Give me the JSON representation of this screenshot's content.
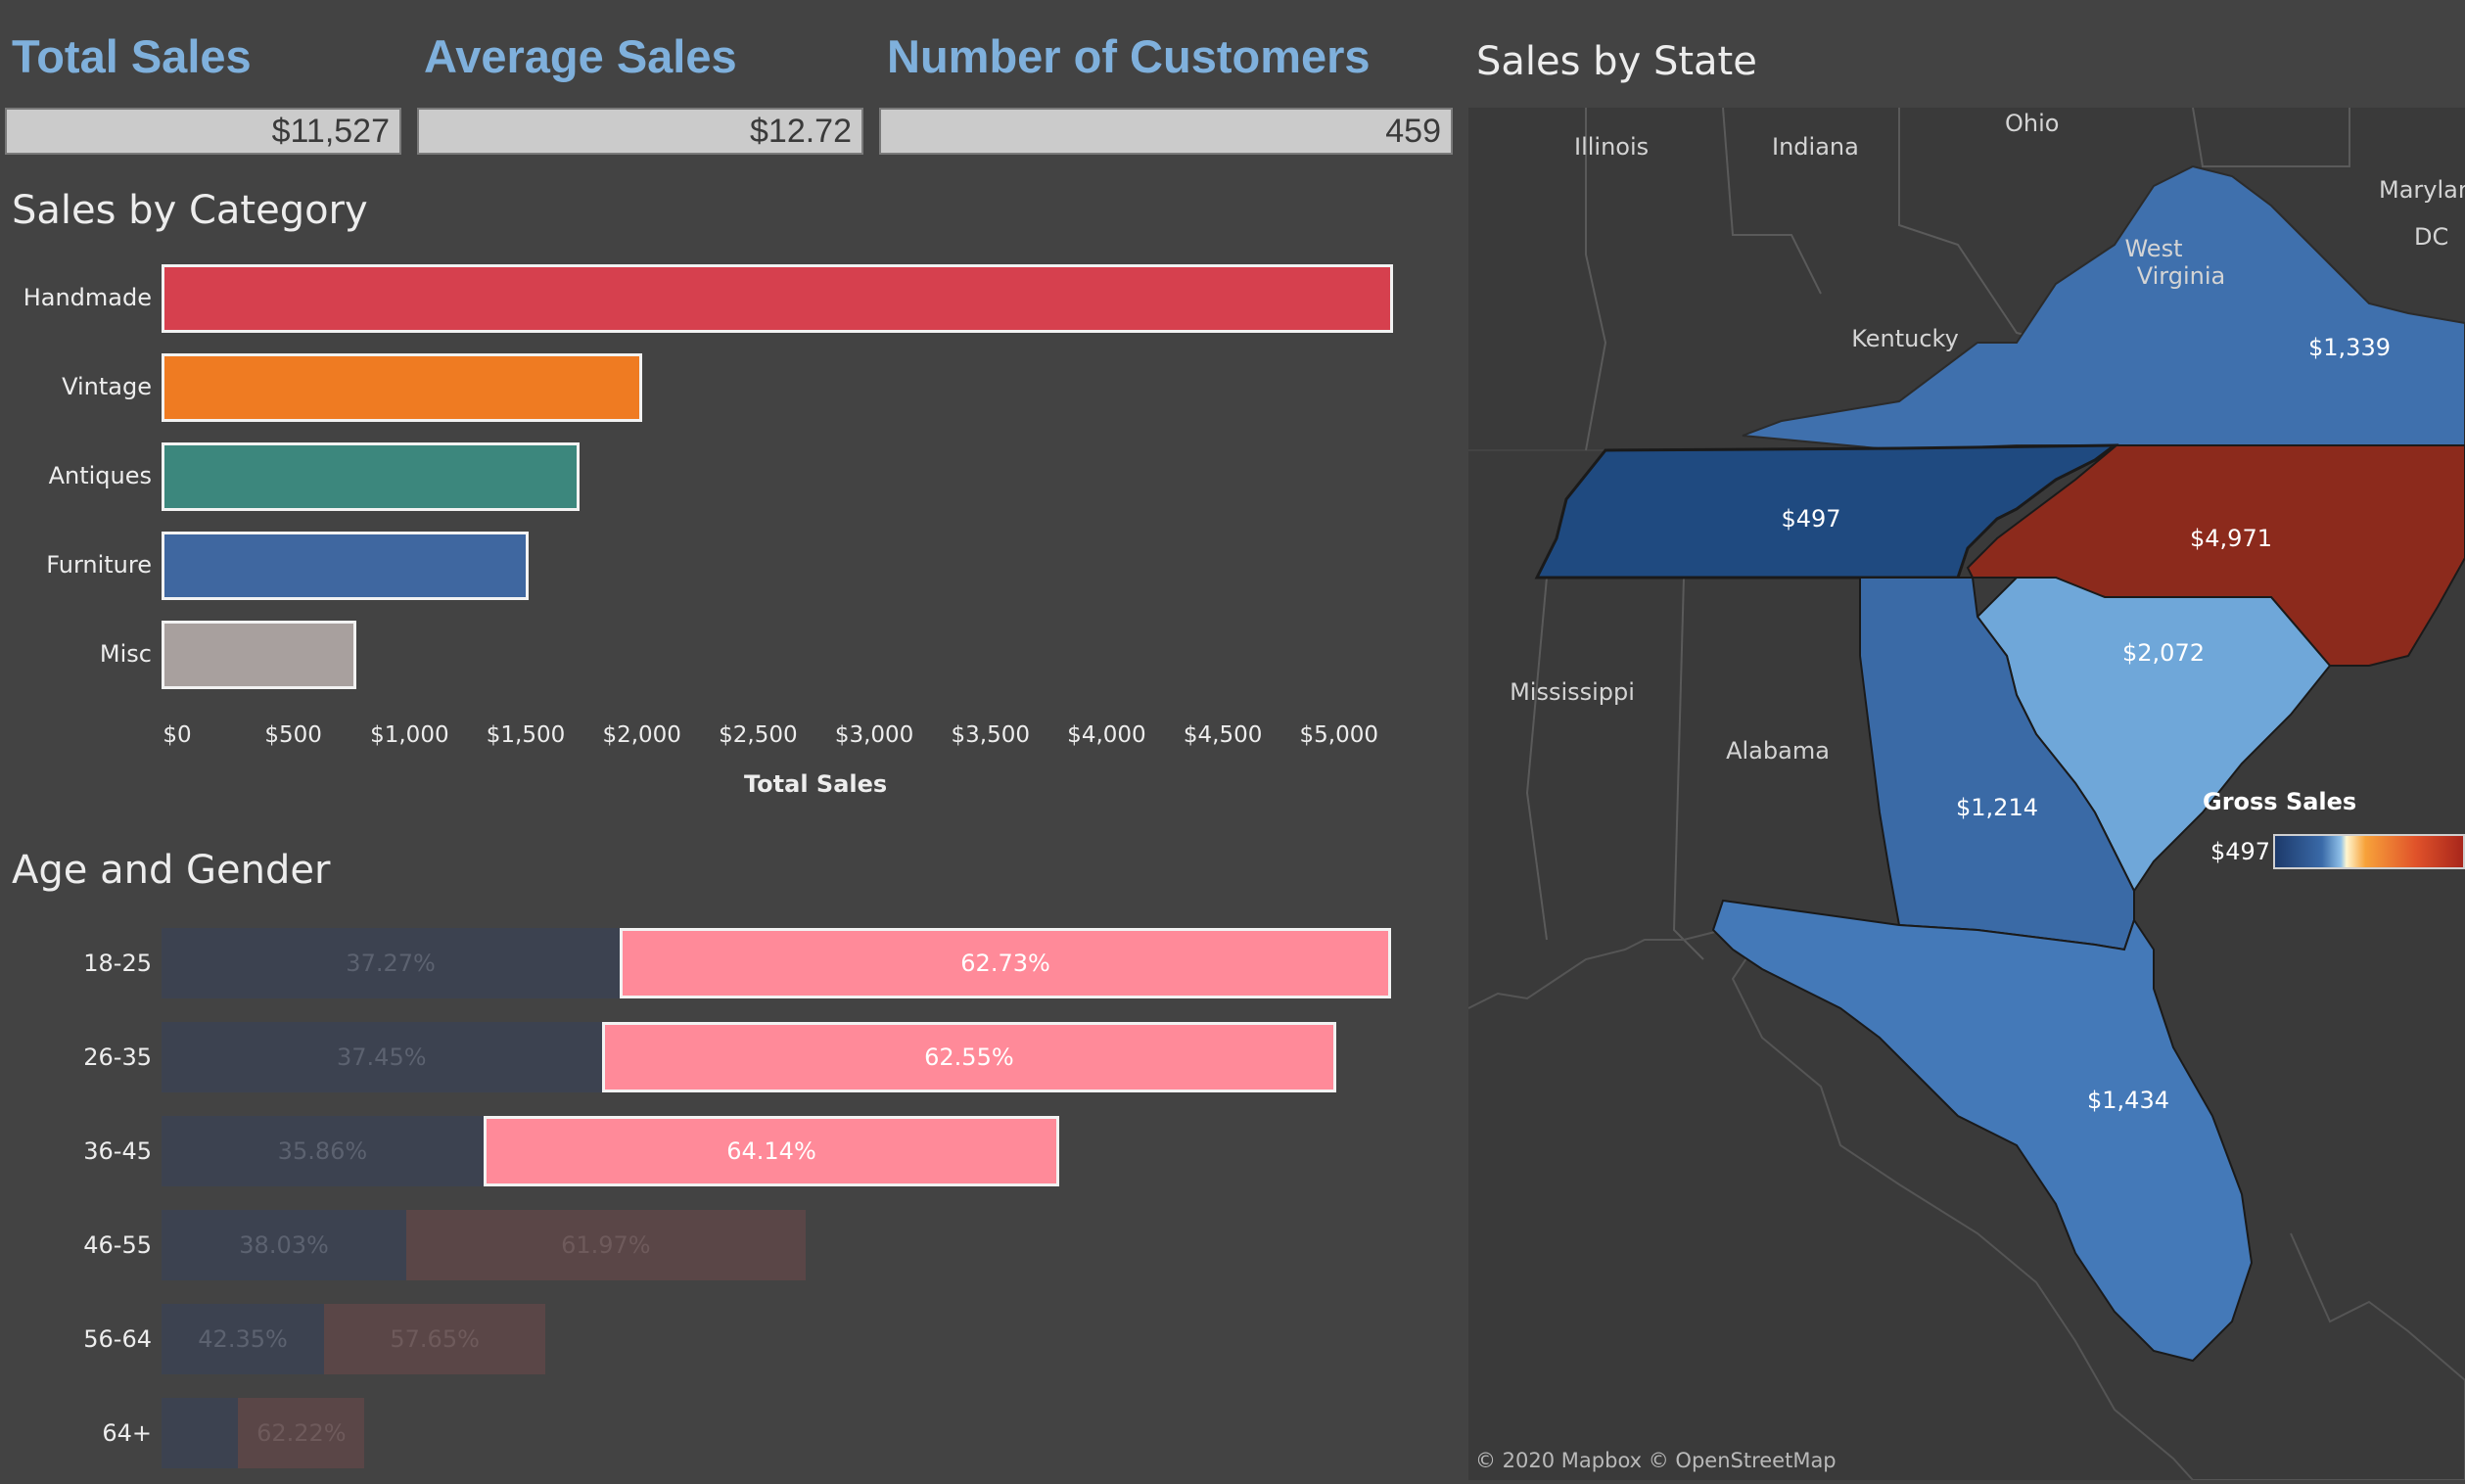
{
  "kpis": {
    "total_sales": {
      "title": "Total Sales",
      "value": "$11,527"
    },
    "average_sales": {
      "title": "Average Sales",
      "value": "$12.72"
    },
    "customers": {
      "title": "Number of Customers",
      "value": "459"
    }
  },
  "category": {
    "title": "Sales by Category",
    "axis_title": "Total Sales",
    "ticks": [
      "$0",
      "$500",
      "$1,000",
      "$1,500",
      "$2,000",
      "$2,500",
      "$3,000",
      "$3,500",
      "$4,000",
      "$4,500",
      "$5,000"
    ]
  },
  "chart_data": [
    {
      "type": "bar",
      "title": "Sales by Category",
      "xlabel": "Total Sales",
      "categories": [
        "Handmade",
        "Vintage",
        "Antiques",
        "Furniture",
        "Misc"
      ],
      "values": [
        5300,
        2070,
        1800,
        1580,
        840
      ],
      "xlim": [
        0,
        5300
      ],
      "colors": [
        "#d6404e",
        "#ef7b22",
        "#3c877d",
        "#3f67a0",
        "#a8a09e"
      ]
    },
    {
      "type": "bar",
      "title": "Age and Gender",
      "categories": [
        "18-25",
        "26-35",
        "36-45",
        "46-55",
        "56-64",
        "64+"
      ],
      "series": [
        {
          "values": [
            37.27,
            37.45,
            35.86,
            38.03,
            42.35,
            37.78
          ]
        },
        {
          "values": [
            62.73,
            62.55,
            64.14,
            61.97,
            57.65,
            62.22
          ]
        }
      ],
      "labels_male": [
        "37.27%",
        "37.45%",
        "35.86%",
        "38.03%",
        "42.35%",
        ""
      ],
      "labels_female": [
        "62.73%",
        "62.55%",
        "64.14%",
        "61.97%",
        "57.65%",
        "62.22%"
      ],
      "totals": [
        1060,
        1013,
        774,
        555,
        331,
        175
      ],
      "highlighted": [
        true,
        true,
        true,
        false,
        false,
        false
      ]
    }
  ],
  "age_gender": {
    "title": "Age and Gender"
  },
  "map": {
    "title": "Sales by State",
    "legend_title": "Gross Sales",
    "legend_min": "$497",
    "attribution": "© 2020 Mapbox  © OpenStreetMap",
    "labels": {
      "illinois": "Illinois",
      "indiana": "Indiana",
      "ohio": "Ohio",
      "maryland": "Marylan",
      "dc": "DC",
      "west_virginia_1": "West",
      "west_virginia_2": "Virginia",
      "kentucky": "Kentucky",
      "mississippi": "Mississippi",
      "alabama": "Alabama"
    },
    "values": {
      "virginia": "$1,339",
      "tennessee": "$497",
      "north_carolina": "$4,971",
      "south_carolina": "$2,072",
      "georgia": "$1,214",
      "florida": "$1,434"
    },
    "colors": {
      "virginia": "#3f70ad",
      "tennessee": "#1f4a80",
      "north_carolina": "#8c2a1c",
      "south_carolina": "#6fa7d9",
      "georgia": "#3a6aa6",
      "florida": "#4479b8",
      "base": "#3a3a3a"
    }
  }
}
